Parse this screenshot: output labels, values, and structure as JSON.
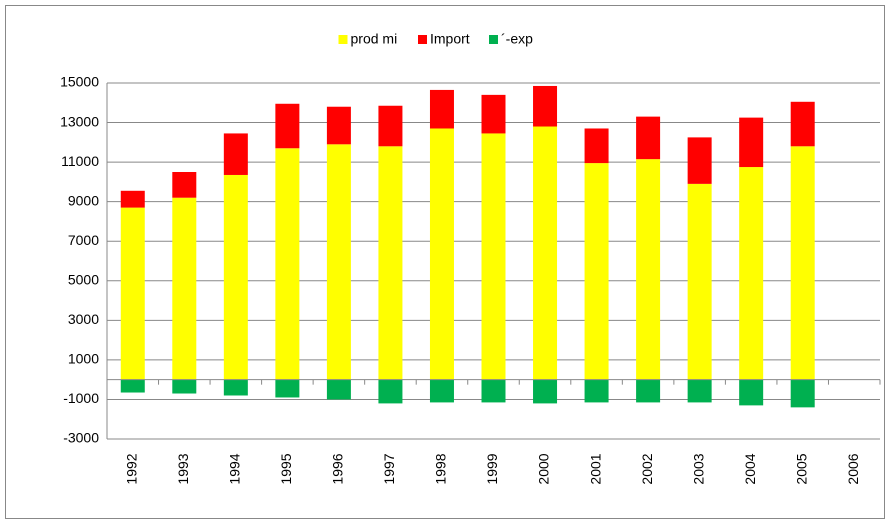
{
  "chart_data": {
    "type": "stacked_bar",
    "categories": [
      "1992",
      "1993",
      "1994",
      "1995",
      "1996",
      "1997",
      "1998",
      "1999",
      "2000",
      "2001",
      "2002",
      "2003",
      "2004",
      "2005",
      "2006"
    ],
    "series": [
      {
        "name": "prod mi",
        "color": "#ffff00",
        "values": [
          8700,
          9200,
          10350,
          11700,
          11900,
          11800,
          12700,
          12450,
          12800,
          10950,
          11150,
          9900,
          10750,
          11800,
          null
        ]
      },
      {
        "name": "Import",
        "color": "#ff0000",
        "values": [
          850,
          1300,
          2100,
          2250,
          1900,
          2050,
          1950,
          1950,
          2050,
          1750,
          2150,
          2350,
          2500,
          2250,
          null
        ]
      },
      {
        "name": "´-exp",
        "color": "#00b050",
        "values": [
          -650,
          -700,
          -800,
          -900,
          -1000,
          -1200,
          -1150,
          -1150,
          -1200,
          -1150,
          -1150,
          -1150,
          -1300,
          -1400,
          null
        ]
      }
    ],
    "ylim": [
      -3000,
      15000
    ],
    "yticks": [
      -3000,
      -1000,
      1000,
      3000,
      5000,
      7000,
      9000,
      11000,
      13000,
      15000
    ],
    "grid": true,
    "legend": "top"
  }
}
